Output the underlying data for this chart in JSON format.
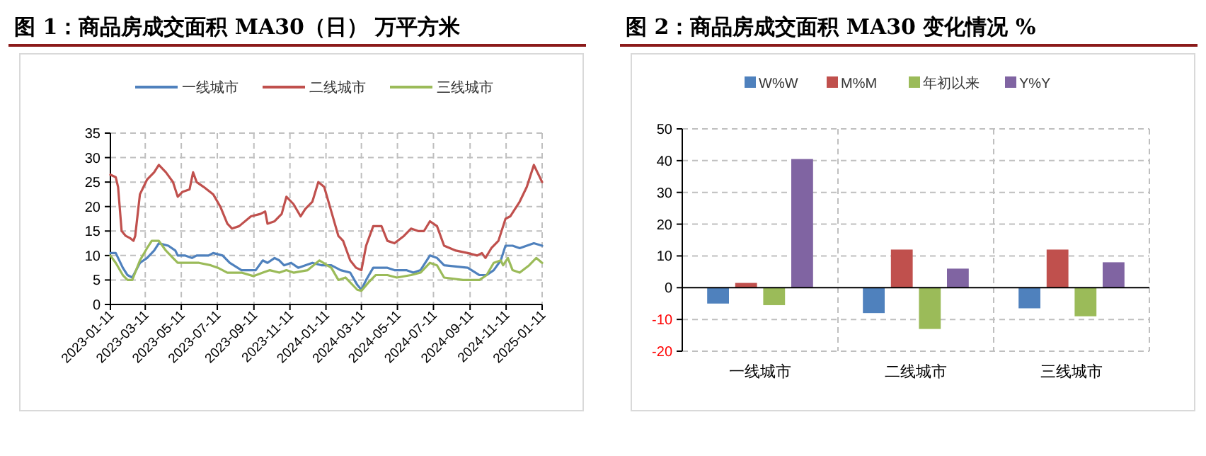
{
  "chart_data": [
    {
      "type": "line",
      "title": "图 1：商品房成交面积 MA30（日）  万平方米",
      "xlim": [
        "2023-01-11",
        "2025-01-11"
      ],
      "xticks": [
        "2023-01-11",
        "2023-03-11",
        "2023-05-11",
        "2023-07-11",
        "2023-09-11",
        "2023-11-11",
        "2024-01-11",
        "2024-03-11",
        "2024-05-11",
        "2024-07-11",
        "2024-09-11",
        "2024-11-11",
        "2025-01-11"
      ],
      "ylim": [
        0,
        35
      ],
      "yticks": [
        0,
        5,
        10,
        15,
        20,
        25,
        30,
        35
      ],
      "grid": true,
      "legend": "top",
      "series": [
        {
          "name": "一线城市",
          "color": "#4f81bd",
          "x": [
            "2023-01-11",
            "2023-01-20",
            "2023-02-01",
            "2023-02-09",
            "2023-02-17",
            "2023-03-02",
            "2023-03-14",
            "2023-03-26",
            "2023-04-03",
            "2023-04-19",
            "2023-05-01",
            "2023-05-05",
            "2023-05-17",
            "2023-05-29",
            "2023-06-06",
            "2023-06-26",
            "2023-07-04",
            "2023-07-20",
            "2023-08-01",
            "2023-08-21",
            "2023-09-14",
            "2023-09-26",
            "2023-10-04",
            "2023-10-16",
            "2023-10-24",
            "2023-11-01",
            "2023-11-13",
            "2023-11-25",
            "2023-12-19",
            "2024-01-04",
            "2024-01-20",
            "2024-02-05",
            "2024-02-21",
            "2024-03-04",
            "2024-03-11",
            "2024-03-19",
            "2024-03-31",
            "2024-04-24",
            "2024-05-06",
            "2024-05-26",
            "2024-06-07",
            "2024-06-19",
            "2024-07-05",
            "2024-07-17",
            "2024-07-29",
            "2024-09-07",
            "2024-09-27",
            "2024-10-09",
            "2024-10-21",
            "2024-11-02",
            "2024-11-10",
            "2024-11-22",
            "2024-12-04",
            "2024-12-16",
            "2024-12-28",
            "2025-01-11"
          ],
          "values": [
            10.5,
            10.5,
            7.5,
            6,
            5.5,
            8.5,
            9.5,
            11,
            12.5,
            12,
            11,
            10,
            10,
            9.5,
            10,
            10,
            10.5,
            10,
            8.5,
            7,
            7,
            9,
            8.5,
            9.5,
            9,
            8,
            8.5,
            7.5,
            8.5,
            8,
            8,
            7,
            6.5,
            4,
            3,
            5,
            7.5,
            7.5,
            7,
            7,
            6.5,
            7,
            10,
            9.5,
            8,
            7.5,
            6,
            6,
            7,
            9,
            12,
            12,
            11.5,
            12,
            12.5,
            12
          ]
        },
        {
          "name": "二线城市",
          "color": "#c0504d",
          "x": [
            "2023-01-11",
            "2023-01-20",
            "2023-01-24",
            "2023-01-30",
            "2023-02-06",
            "2023-02-14",
            "2023-02-19",
            "2023-02-22",
            "2023-03-02",
            "2023-03-14",
            "2023-03-26",
            "2023-04-03",
            "2023-04-15",
            "2023-04-27",
            "2023-05-05",
            "2023-05-13",
            "2023-05-25",
            "2023-05-31",
            "2023-06-06",
            "2023-06-18",
            "2023-07-04",
            "2023-07-16",
            "2023-07-28",
            "2023-08-05",
            "2023-08-17",
            "2023-09-06",
            "2023-09-22",
            "2023-09-30",
            "2023-10-04",
            "2023-10-16",
            "2023-10-28",
            "2023-11-05",
            "2023-11-17",
            "2023-11-29",
            "2023-12-07",
            "2023-12-19",
            "2023-12-29",
            "2024-01-08",
            "2024-01-20",
            "2024-02-01",
            "2024-02-09",
            "2024-02-21",
            "2024-03-02",
            "2024-03-11",
            "2024-03-19",
            "2024-03-31",
            "2024-04-14",
            "2024-04-24",
            "2024-05-06",
            "2024-05-22",
            "2024-06-03",
            "2024-06-15",
            "2024-06-25",
            "2024-07-05",
            "2024-07-17",
            "2024-07-29",
            "2024-08-18",
            "2024-09-07",
            "2024-09-23",
            "2024-10-01",
            "2024-10-07",
            "2024-10-17",
            "2024-10-29",
            "2024-11-10",
            "2024-11-18",
            "2024-12-04",
            "2024-12-16",
            "2024-12-28",
            "2025-01-03",
            "2025-01-11"
          ],
          "values": [
            26.5,
            26,
            24,
            15,
            14,
            13.5,
            13,
            14,
            22.5,
            25.5,
            27,
            28.5,
            27,
            25,
            22,
            23,
            23.5,
            27,
            25,
            24,
            22.5,
            20,
            16.5,
            15.5,
            16,
            18,
            18.5,
            19,
            16.5,
            17,
            18.5,
            22,
            20.5,
            18,
            19.5,
            21,
            25,
            24,
            19,
            14,
            13,
            9,
            7.5,
            7,
            12,
            16,
            16,
            13,
            12.5,
            14,
            15.5,
            15,
            15,
            17,
            16,
            12,
            11,
            10.5,
            10,
            10.5,
            9.5,
            11.5,
            13,
            17.5,
            18,
            21,
            24,
            28.5,
            27,
            25
          ]
        },
        {
          "name": "三线城市",
          "color": "#9bbb59",
          "x": [
            "2023-01-11",
            "2023-01-20",
            "2023-02-01",
            "2023-02-09",
            "2023-02-17",
            "2023-03-02",
            "2023-03-14",
            "2023-03-22",
            "2023-04-03",
            "2023-04-15",
            "2023-04-27",
            "2023-05-05",
            "2023-05-25",
            "2023-06-10",
            "2023-06-30",
            "2023-07-12",
            "2023-07-28",
            "2023-08-21",
            "2023-09-10",
            "2023-09-26",
            "2023-10-08",
            "2023-10-24",
            "2023-11-05",
            "2023-11-17",
            "2023-12-11",
            "2023-12-31",
            "2024-01-20",
            "2024-02-01",
            "2024-02-13",
            "2024-03-04",
            "2024-03-11",
            "2024-03-23",
            "2024-04-04",
            "2024-04-24",
            "2024-05-10",
            "2024-06-03",
            "2024-06-19",
            "2024-07-05",
            "2024-07-17",
            "2024-07-29",
            "2024-08-30",
            "2024-09-15",
            "2024-09-27",
            "2024-10-09",
            "2024-10-21",
            "2024-11-02",
            "2024-11-06",
            "2024-11-14",
            "2024-11-22",
            "2024-12-04",
            "2024-12-20",
            "2025-01-01",
            "2025-01-11"
          ],
          "values": [
            10,
            8.5,
            6,
            5,
            5,
            9,
            11.5,
            13,
            13,
            11,
            9.5,
            8.5,
            8.5,
            8.5,
            8,
            7.5,
            6.5,
            6.5,
            5.8,
            6.5,
            7,
            6.5,
            7,
            6.5,
            7,
            9,
            7.5,
            5,
            5.5,
            3,
            2.8,
            4.5,
            6,
            6,
            5.5,
            6,
            6.5,
            8.5,
            8,
            5.5,
            5,
            5,
            5,
            6,
            8.5,
            9,
            8,
            9.5,
            7,
            6.5,
            8,
            9.5,
            8.5
          ]
        }
      ]
    },
    {
      "type": "bar",
      "title": "图 2：商品房成交面积 MA30 变化情况  %",
      "categories": [
        "一线城市",
        "二线城市",
        "三线城市"
      ],
      "ylim": [
        -20,
        50
      ],
      "yticks": [
        -20,
        -10,
        0,
        10,
        20,
        30,
        40,
        50
      ],
      "grid": true,
      "legend": "top",
      "series": [
        {
          "name": "W%W",
          "color": "#4f81bd",
          "values": [
            -5,
            -8,
            -6.5
          ]
        },
        {
          "name": "M%M",
          "color": "#c0504d",
          "values": [
            1.5,
            12,
            12
          ]
        },
        {
          "name": "年初以来",
          "color": "#9bbb59",
          "values": [
            -5.5,
            -13,
            -9
          ]
        },
        {
          "name": "Y%Y",
          "color": "#8064a2",
          "values": [
            40.5,
            6,
            8
          ]
        }
      ]
    }
  ]
}
